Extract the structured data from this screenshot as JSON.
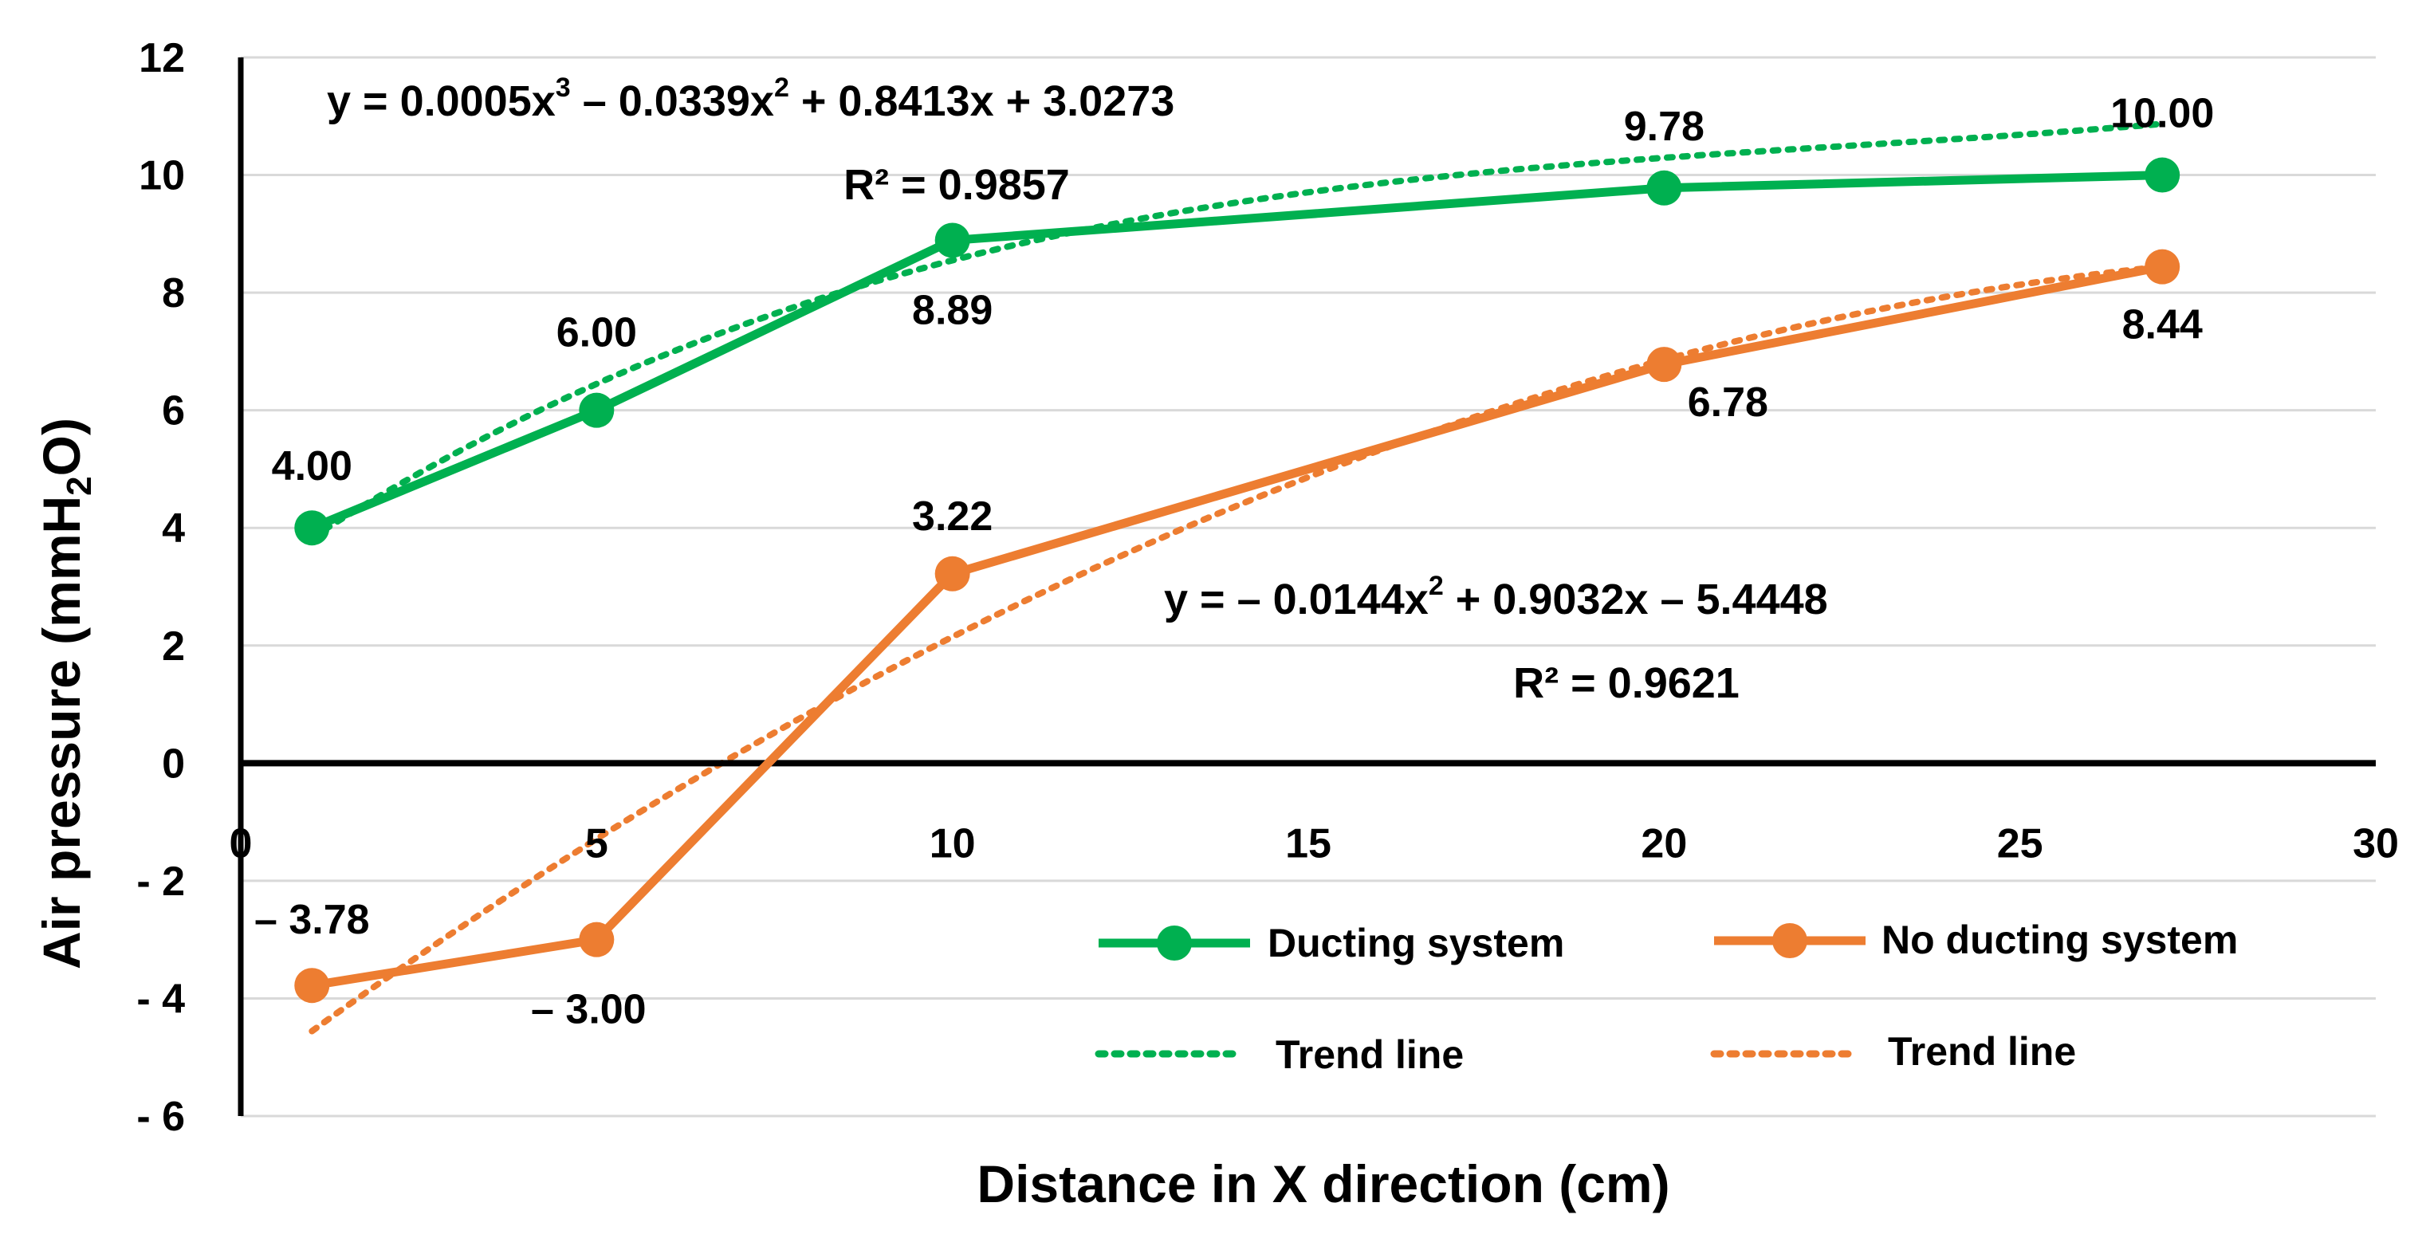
{
  "chart_data": {
    "type": "line",
    "xlabel": "Distance  in X direction (cm)",
    "ylabel": {
      "main": "Air pressure (mmH",
      "sub": "2",
      "tail": "O)"
    },
    "xlim": [
      0,
      30
    ],
    "ylim": [
      -6,
      12
    ],
    "xticks": [
      0,
      5,
      10,
      15,
      20,
      25,
      30
    ],
    "xtick_labels": [
      "0",
      "5",
      "10",
      "15",
      "20",
      "25",
      "30"
    ],
    "yticks": [
      12,
      10,
      8,
      6,
      4,
      2,
      0,
      -2,
      -4,
      -6
    ],
    "ytick_labels": [
      "12",
      "10",
      "8",
      "6",
      "4",
      "2",
      "0",
      "- 2",
      "- 4",
      "- 6"
    ],
    "grid": "horizontal",
    "legend_position": "bottom-right",
    "series": [
      {
        "name": "Ducting system",
        "color": "#00b050",
        "x": [
          1,
          5,
          10,
          20,
          27
        ],
        "y": [
          4.0,
          6.0,
          8.89,
          9.78,
          10.0
        ],
        "labels": [
          "4.00",
          "6.00",
          "8.89",
          "9.78",
          "10.00"
        ]
      },
      {
        "name": "No ducting system",
        "color": "#ed7d31",
        "x": [
          1,
          5,
          10,
          20,
          27
        ],
        "y": [
          -3.78,
          -3.0,
          3.22,
          6.78,
          8.44
        ],
        "labels": [
          "– 3.78",
          "– 3.00",
          "3.22",
          "6.78",
          "8.44"
        ]
      }
    ],
    "trendlines": [
      {
        "name": "Trend line",
        "series": "Ducting system",
        "color": "#00b050",
        "coefficients": [
          0.0005,
          -0.0339,
          0.8413,
          3.0273
        ],
        "equation": {
          "parts": [
            "y = 0.0005x",
            "3",
            " – 0.0339x",
            "2",
            " + 0.8413x + 3.0273"
          ]
        },
        "r2": "R² = 0.9857"
      },
      {
        "name": "Trend line",
        "series": "No ducting system",
        "color": "#ed7d31",
        "coefficients": [
          -0.0144,
          0.9032,
          -5.4448
        ],
        "equation": {
          "parts": [
            "y = – 0.0144x",
            "2",
            " + 0.9032x – 5.4448"
          ]
        },
        "r2": "R² = 0.9621"
      }
    ]
  }
}
